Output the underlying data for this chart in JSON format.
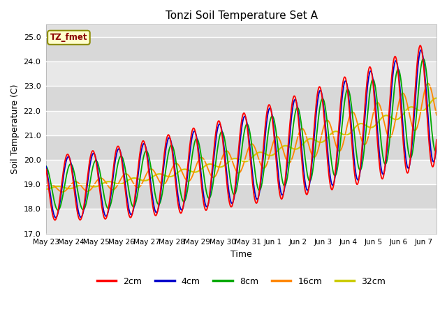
{
  "title": "Tonzi Soil Temperature Set A",
  "xlabel": "Time",
  "ylabel": "Soil Temperature (C)",
  "ylim": [
    17.0,
    25.5
  ],
  "yticks": [
    17.0,
    18.0,
    19.0,
    20.0,
    21.0,
    22.0,
    23.0,
    24.0,
    25.0
  ],
  "ytick_labels": [
    "17.0",
    "18.0",
    "19.0",
    "20.0",
    "21.0",
    "22.0",
    "23.0",
    "24.0",
    "25.0"
  ],
  "xtick_labels": [
    "May 23",
    "May 24",
    "May 25",
    "May 26",
    "May 27",
    "May 28",
    "May 29",
    "May 30",
    "May 31",
    "Jun 1",
    "Jun 2",
    "Jun 3",
    "Jun 4",
    "Jun 5",
    "Jun 6",
    "Jun 7"
  ],
  "colors": {
    "2cm": "#ff0000",
    "4cm": "#0000cc",
    "8cm": "#00aa00",
    "16cm": "#ff8800",
    "32cm": "#cccc00"
  },
  "legend_label": "TZ_fmet",
  "bg_color": "#e0e0e0",
  "fig_color": "#ffffff"
}
